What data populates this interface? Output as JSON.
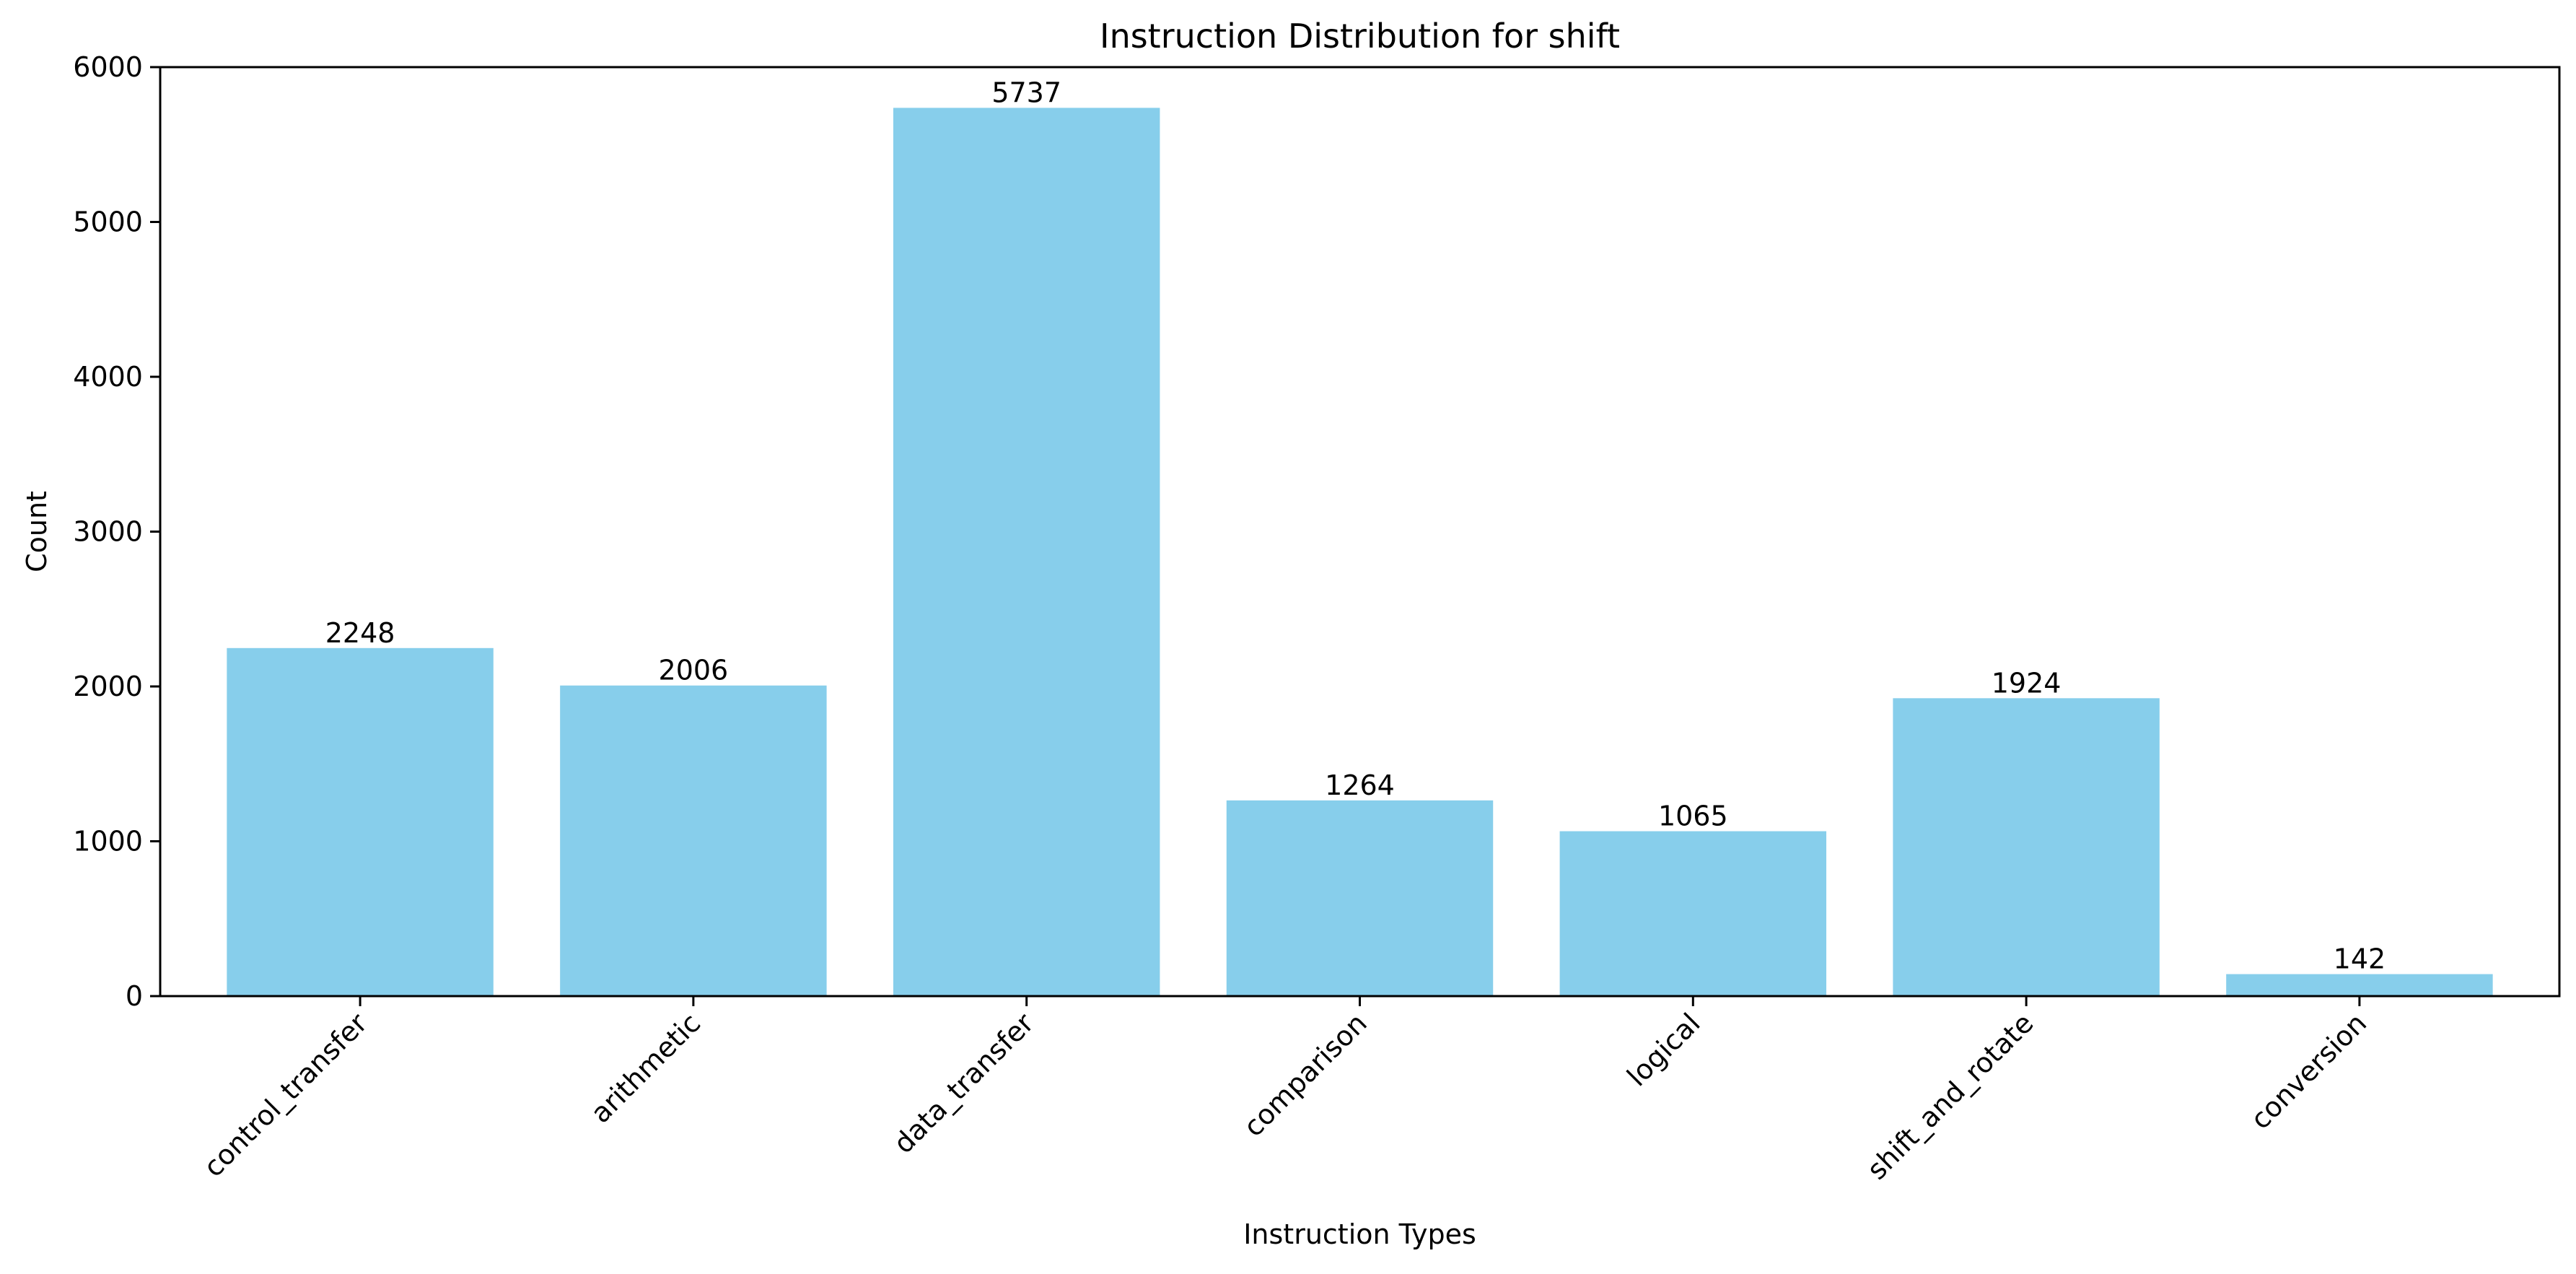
{
  "chart_data": {
    "type": "bar",
    "title": "Instruction Distribution for shift",
    "xlabel": "Instruction Types",
    "ylabel": "Count",
    "categories": [
      "control_transfer",
      "arithmetic",
      "data_transfer",
      "comparison",
      "logical",
      "shift_and_rotate",
      "conversion"
    ],
    "values": [
      2248,
      2006,
      5737,
      1264,
      1065,
      1924,
      142
    ],
    "ylim": [
      0,
      6000
    ],
    "yticks": [
      0,
      1000,
      2000,
      3000,
      4000,
      5000,
      6000
    ],
    "bar_color": "#87CEEB",
    "grid": false,
    "legend": "none"
  }
}
